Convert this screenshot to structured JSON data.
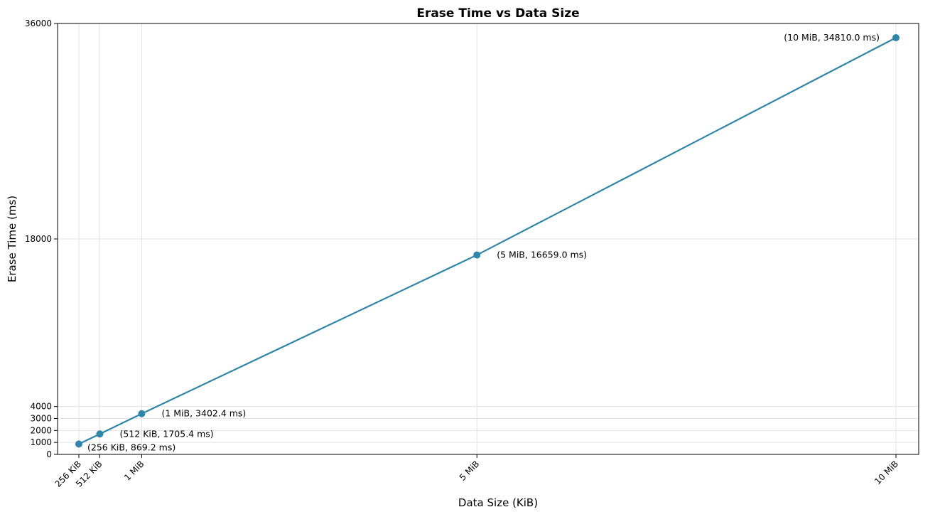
{
  "chart_data": {
    "type": "line",
    "title": "Erase Time vs Data Size",
    "xlabel": "Data Size (KiB)",
    "ylabel": "Erase Time (ms)",
    "x": [
      256,
      512,
      1024,
      5120,
      10240
    ],
    "x_tick_labels": [
      "256 KiB",
      "512 KiB",
      "1 MiB",
      "5 MiB",
      "10 MiB"
    ],
    "y_ticks": [
      0,
      1000,
      2000,
      3000,
      4000,
      18000,
      36000
    ],
    "ylim": [
      0,
      36000
    ],
    "grid": true,
    "series": [
      {
        "values": [
          869.2,
          1705.4,
          3402.4,
          16659.0,
          34810.0
        ],
        "color": "#2e86ab",
        "point_labels": [
          "(256 KiB, 869.2 ms)",
          "(512 KiB, 1705.4 ms)",
          "(1 MiB, 3402.4 ms)",
          "(5 MiB, 16659.0 ms)",
          "(10 MiB, 34810.0 ms)"
        ]
      }
    ]
  }
}
